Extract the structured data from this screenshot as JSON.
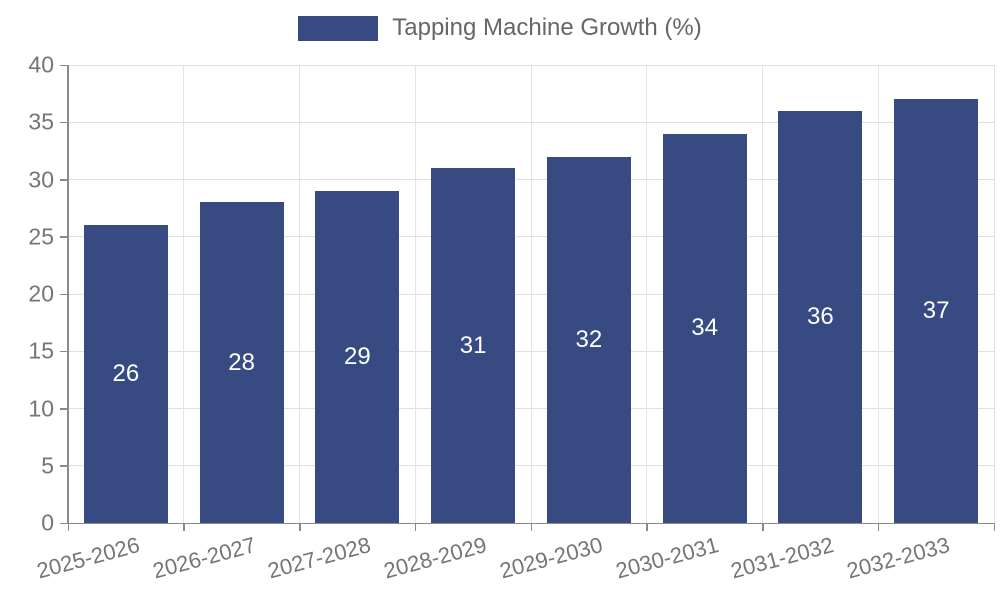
{
  "chart_data": {
    "type": "bar",
    "legend_label": "Tapping Machine Growth (%)",
    "legend_position": "top-center",
    "categories": [
      "2025-2026",
      "2026-2027",
      "2027-2028",
      "2028-2029",
      "2029-2030",
      "2030-2031",
      "2031-2032",
      "2032-2033"
    ],
    "values": [
      26,
      28,
      29,
      31,
      32,
      34,
      36,
      37
    ],
    "ylim": [
      0,
      40
    ],
    "yticks": [
      0,
      5,
      10,
      15,
      20,
      25,
      30,
      35,
      40
    ],
    "grid": true,
    "x_label_rotation_deg": -15,
    "bar_color": "#374a82",
    "bar_value_label_color": "#ffffff",
    "axis_color": "#8a8a8a",
    "tick_label_color": "#757575",
    "legend_text_color": "#666666",
    "grid_color": "#e0e0e0"
  }
}
